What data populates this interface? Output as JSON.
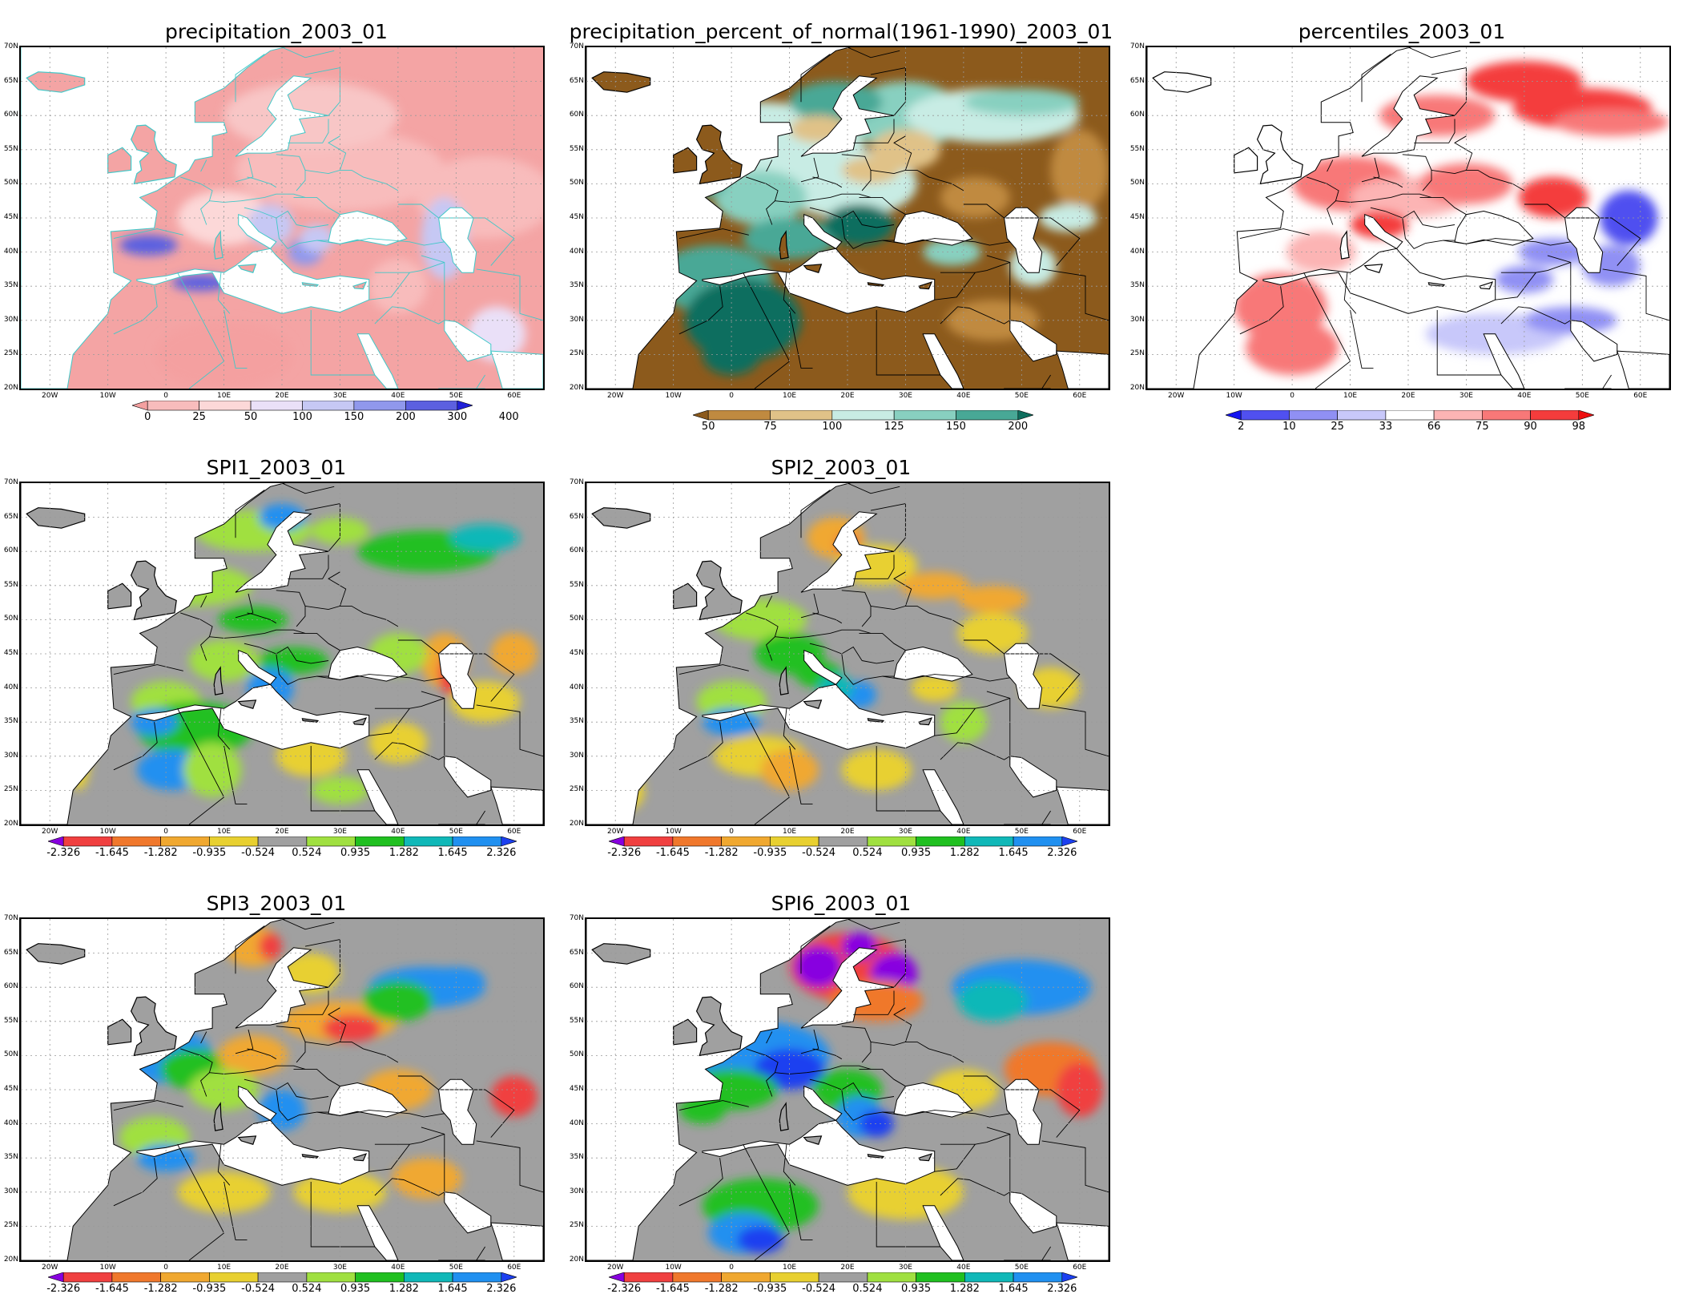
{
  "panels": [
    {
      "id": "p1",
      "title": "precipitation_2003_01",
      "theme": "precip",
      "colorbar": {
        "colors": [
          "#f4a0a0",
          "#f8bcbc",
          "#fcd8d8",
          "#eae0f8",
          "#c6c8f4",
          "#9098ec",
          "#5c60e0",
          "#2020d8"
        ],
        "labels": [
          "0",
          "25",
          "50",
          "100",
          "150",
          "200",
          "300",
          "400"
        ]
      }
    },
    {
      "id": "p2",
      "title": "precipitation_percent_of_normal(1961-1990)_2003_01",
      "theme": "percent",
      "colorbar": {
        "colors": [
          "#8c5a1c",
          "#c08a40",
          "#e0c288",
          "#c8ece4",
          "#88d0c0",
          "#48a896",
          "#0e6e5e"
        ],
        "labels": [
          "50",
          "75",
          "100",
          "125",
          "150",
          "200"
        ]
      }
    },
    {
      "id": "p3",
      "title": "percentiles_2003_01",
      "theme": "pct",
      "colorbar": {
        "colors": [
          "#1414f0",
          "#5050f0",
          "#9090f4",
          "#c8c8fa",
          "#ffffff",
          "#fcb4b4",
          "#f87878",
          "#f43c3c",
          "#ee1010"
        ],
        "labels": [
          "2",
          "10",
          "25",
          "33",
          "66",
          "75",
          "90",
          "98"
        ]
      }
    },
    {
      "id": "p4",
      "title": "SPI1_2003_01",
      "theme": "spi1",
      "colorbar": {
        "colors": [
          "#8800e0",
          "#f04040",
          "#f0782c",
          "#f0a830",
          "#e8d030",
          "#a0a0a0",
          "#a0e040",
          "#20c020",
          "#10b8b8",
          "#2090f0",
          "#1c40f0"
        ],
        "labels": [
          "-2.326",
          "-1.645",
          "-1.282",
          "-0.935",
          "-0.524",
          "0.524",
          "0.935",
          "1.282",
          "1.645",
          "2.326"
        ]
      }
    },
    {
      "id": "p5",
      "title": "SPI2_2003_01",
      "theme": "spi2",
      "colorbar": {
        "colors": [
          "#8800e0",
          "#f04040",
          "#f0782c",
          "#f0a830",
          "#e8d030",
          "#a0a0a0",
          "#a0e040",
          "#20c020",
          "#10b8b8",
          "#2090f0",
          "#1c40f0"
        ],
        "labels": [
          "-2.326",
          "-1.645",
          "-1.282",
          "-0.935",
          "-0.524",
          "0.524",
          "0.935",
          "1.282",
          "1.645",
          "2.326"
        ]
      }
    },
    {
      "id": "p6",
      "title": "SPI3_2003_01",
      "theme": "spi3",
      "colorbar": {
        "colors": [
          "#8800e0",
          "#f04040",
          "#f0782c",
          "#f0a830",
          "#e8d030",
          "#a0a0a0",
          "#a0e040",
          "#20c020",
          "#10b8b8",
          "#2090f0",
          "#1c40f0"
        ],
        "labels": [
          "-2.326",
          "-1.645",
          "-1.282",
          "-0.935",
          "-0.524",
          "0.524",
          "0.935",
          "1.282",
          "1.645",
          "2.326"
        ]
      }
    },
    {
      "id": "p7",
      "title": "SPI6_2003_01",
      "theme": "spi6",
      "colorbar": {
        "colors": [
          "#8800e0",
          "#f04040",
          "#f0782c",
          "#f0a830",
          "#e8d030",
          "#a0a0a0",
          "#a0e040",
          "#20c020",
          "#10b8b8",
          "#2090f0",
          "#1c40f0"
        ],
        "labels": [
          "-2.326",
          "-1.645",
          "-1.282",
          "-0.935",
          "-0.524",
          "0.524",
          "0.935",
          "1.282",
          "1.645",
          "2.326"
        ]
      }
    }
  ],
  "lat_labels": [
    "70N",
    "65N",
    "60N",
    "55N",
    "50N",
    "45N",
    "40N",
    "35N",
    "30N",
    "25N",
    "20N"
  ],
  "lon_labels": [
    "20W",
    "10W",
    "0",
    "10E",
    "20E",
    "30E",
    "40E",
    "50E",
    "60E"
  ]
}
